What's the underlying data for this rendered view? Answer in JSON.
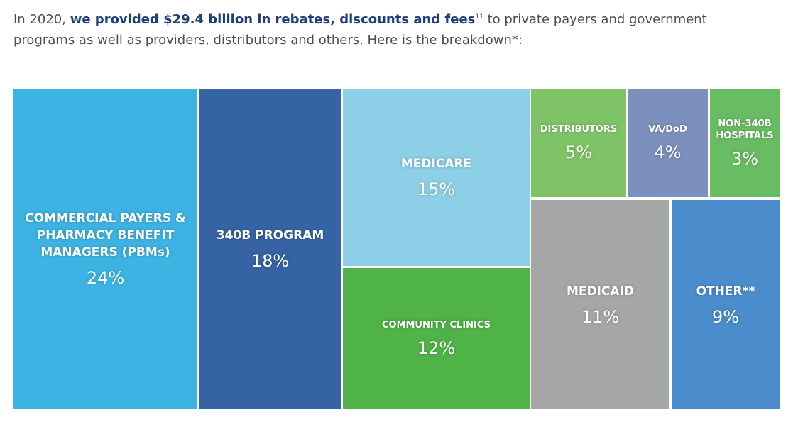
{
  "chart_data": {
    "type": "treemap",
    "subtitle": {
      "lead": "In 2020,",
      "emphasis": "we provided $29.4 billion in rebates, discounts and fees",
      "footnote": "11",
      "rest": "to private payers and government programs as well as providers, distributors and others. Here is the breakdown*:"
    },
    "categories": [
      "COMMERCIAL PAYERS & PHARMACY BENEFIT MANAGERS (PBMs)",
      "340B PROGRAM",
      "MEDICARE",
      "COMMUNITY CLINICS",
      "DISTRIBUTORS",
      "VA/DoD",
      "NON-340B HOSPITALS",
      "MEDICAID",
      "OTHER**"
    ],
    "values": [
      24,
      18,
      15,
      12,
      5,
      4,
      3,
      11,
      9
    ],
    "value_labels": [
      "24%",
      "18%",
      "15%",
      "12%",
      "5%",
      "4%",
      "3%",
      "11%",
      "9%"
    ],
    "colors": [
      "#3db3e3",
      "#3563a3",
      "#8ccfe6",
      "#4fb347",
      "#7ec466",
      "#7b90bd",
      "#68bd62",
      "#a5a6a6",
      "#4a8ccc"
    ]
  }
}
